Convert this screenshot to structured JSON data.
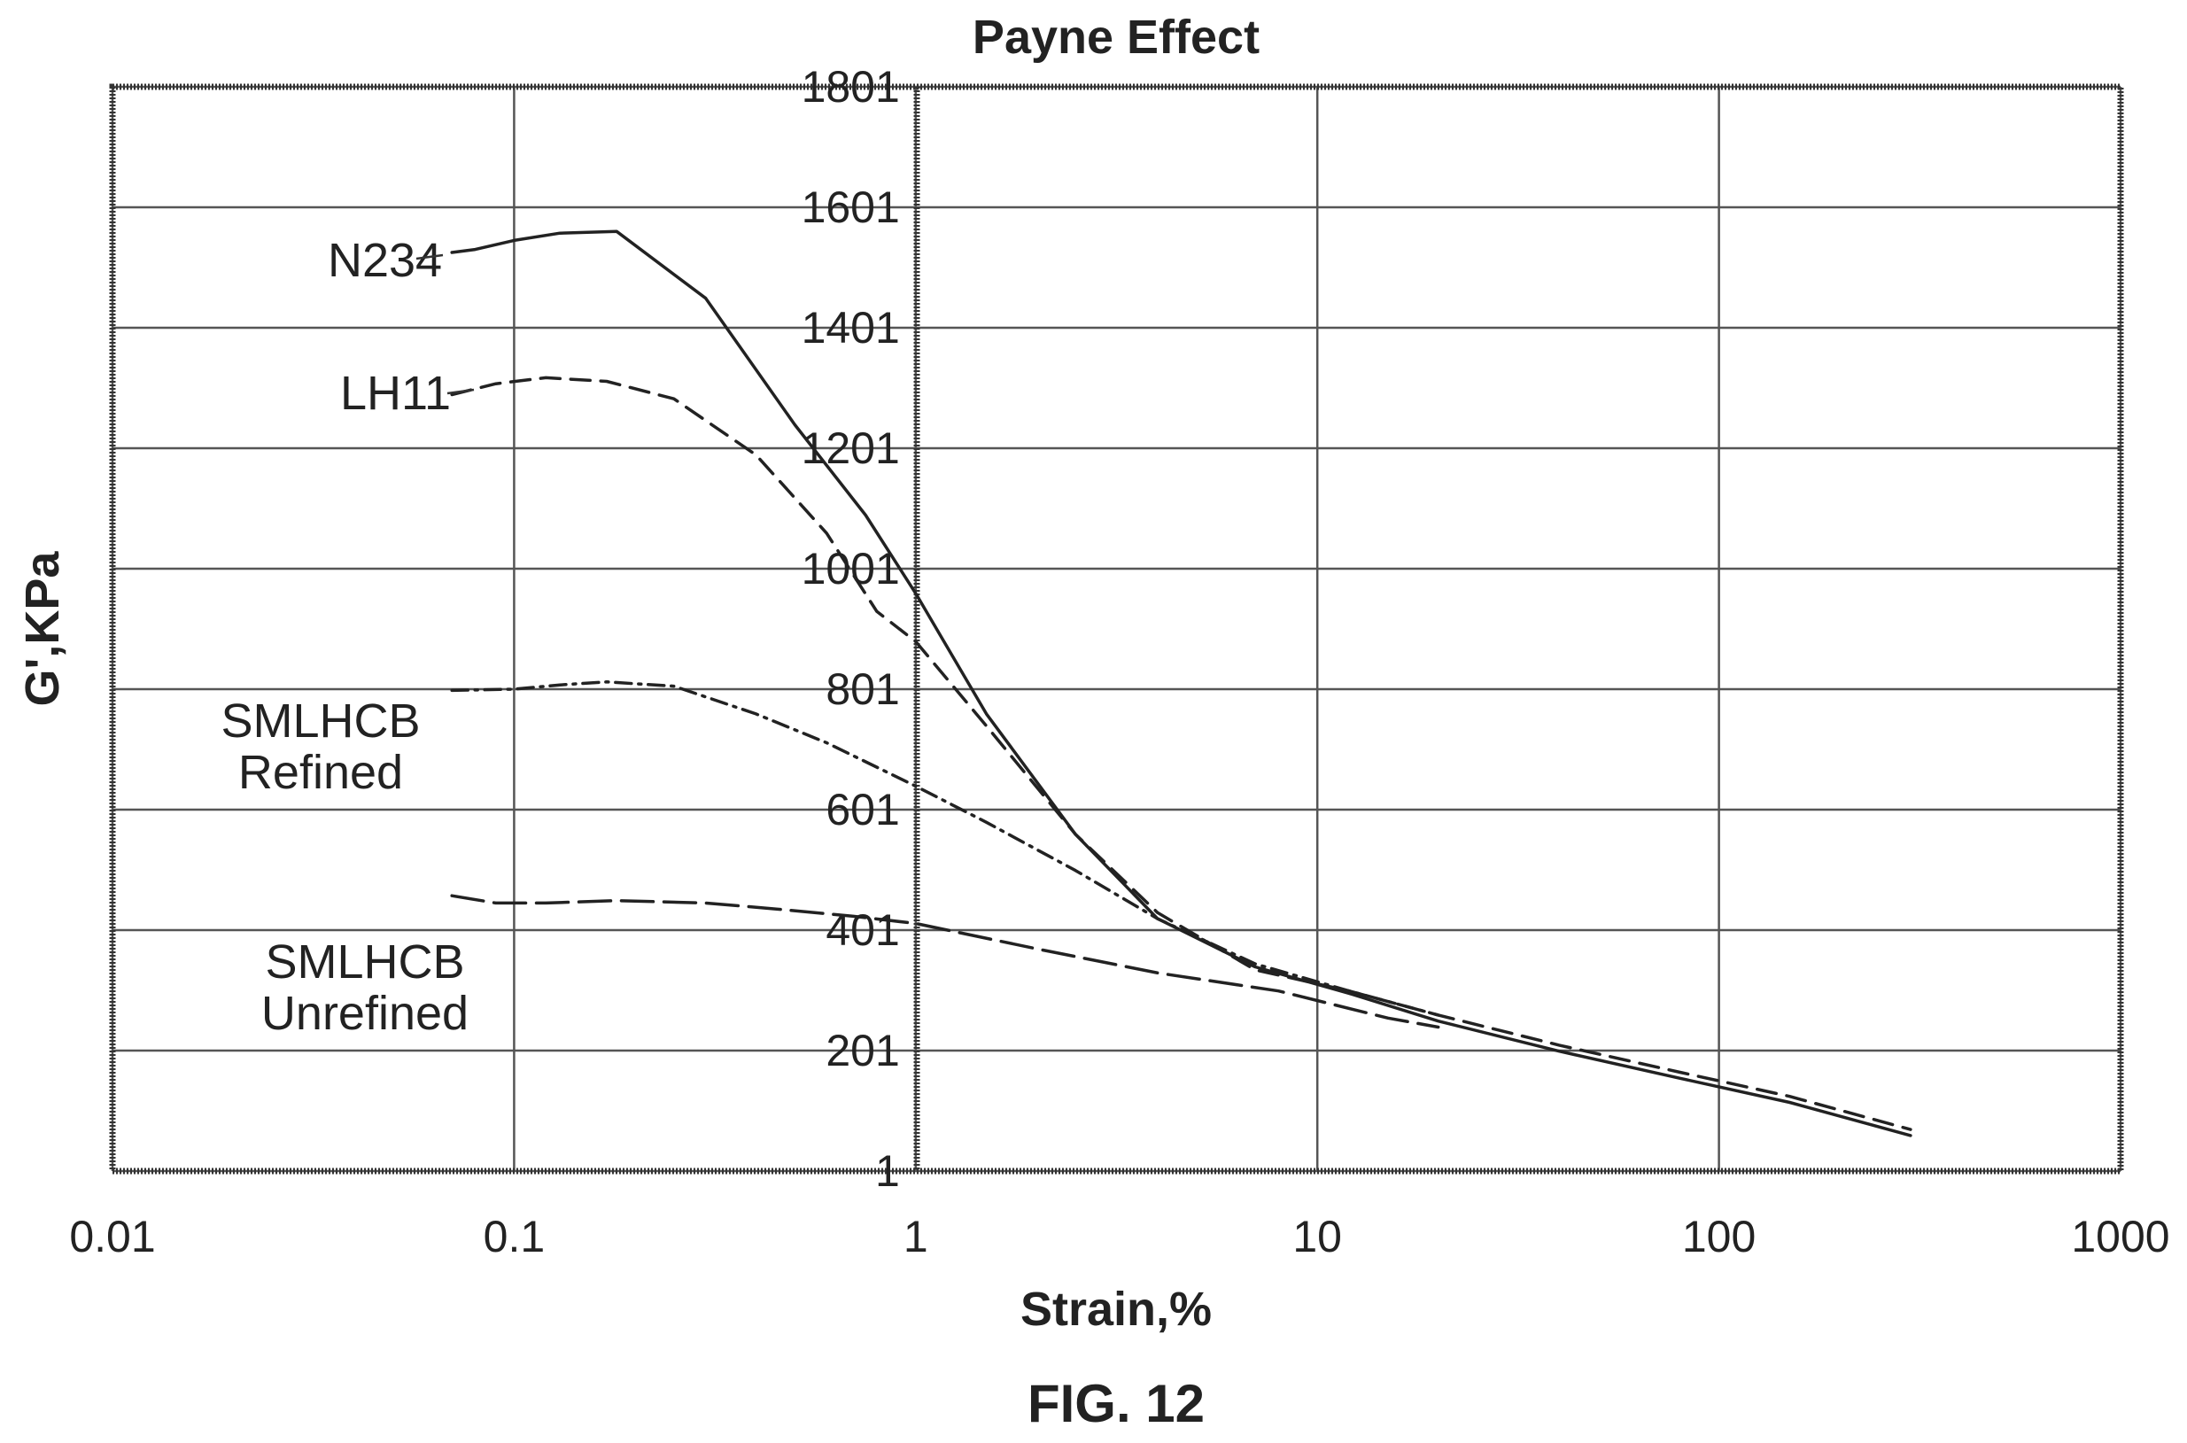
{
  "chart_data": {
    "type": "line",
    "title": "Payne Effect",
    "xlabel": "Strain,%",
    "ylabel": "G',KPa",
    "x_scale": "log",
    "xlim": [
      0.01,
      1000
    ],
    "ylim": [
      1,
      1801
    ],
    "x_ticks": [
      "0.01",
      "0.1",
      "1",
      "10",
      "100",
      "1000"
    ],
    "y_ticks": [
      "1801",
      "1601",
      "1401",
      "1201",
      "1001",
      "801",
      "601",
      "401",
      "201",
      "1"
    ],
    "grid": true,
    "legend": "inline-left",
    "series": [
      {
        "name": "N234",
        "line_style": "solid",
        "x": [
          0.07,
          0.08,
          0.1,
          0.13,
          0.18,
          0.3,
          0.5,
          0.75,
          1.0,
          1.5,
          2.5,
          4,
          7,
          12,
          20,
          40,
          80,
          150,
          300
        ],
        "y": [
          1526,
          1531,
          1546,
          1558,
          1561,
          1450,
          1240,
          1090,
          960,
          760,
          560,
          420,
          340,
          296,
          250,
          200,
          155,
          115,
          60
        ]
      },
      {
        "name": "LH11",
        "line_style": "dashed",
        "x": [
          0.07,
          0.09,
          0.12,
          0.17,
          0.25,
          0.4,
          0.6,
          0.8,
          1.0,
          1.5,
          2.5,
          4,
          7,
          12,
          20,
          40,
          80,
          150,
          300
        ],
        "y": [
          1290,
          1308,
          1318,
          1312,
          1283,
          1190,
          1060,
          930,
          880,
          740,
          560,
          430,
          335,
          300,
          260,
          210,
          165,
          125,
          70
        ]
      },
      {
        "name": "SMLHCB Refined",
        "line_style": "dash-dot",
        "x": [
          0.07,
          0.1,
          0.13,
          0.17,
          0.25,
          0.4,
          0.6,
          1.0,
          1.5,
          2.5,
          4,
          7,
          12,
          20
        ],
        "y": [
          799,
          801,
          808,
          813,
          806,
          760,
          712,
          640,
          580,
          500,
          420,
          345,
          300,
          260
        ]
      },
      {
        "name": "SMLHCB Unrefined",
        "line_style": "long-dash",
        "x": [
          0.07,
          0.09,
          0.12,
          0.18,
          0.3,
          0.45,
          0.7,
          1.0,
          2,
          4,
          8,
          15,
          20
        ],
        "y": [
          458,
          446,
          446,
          450,
          446,
          436,
          424,
          412,
          370,
          330,
          300,
          255,
          240
        ]
      }
    ],
    "annotations": [
      "FIG. 12"
    ]
  }
}
